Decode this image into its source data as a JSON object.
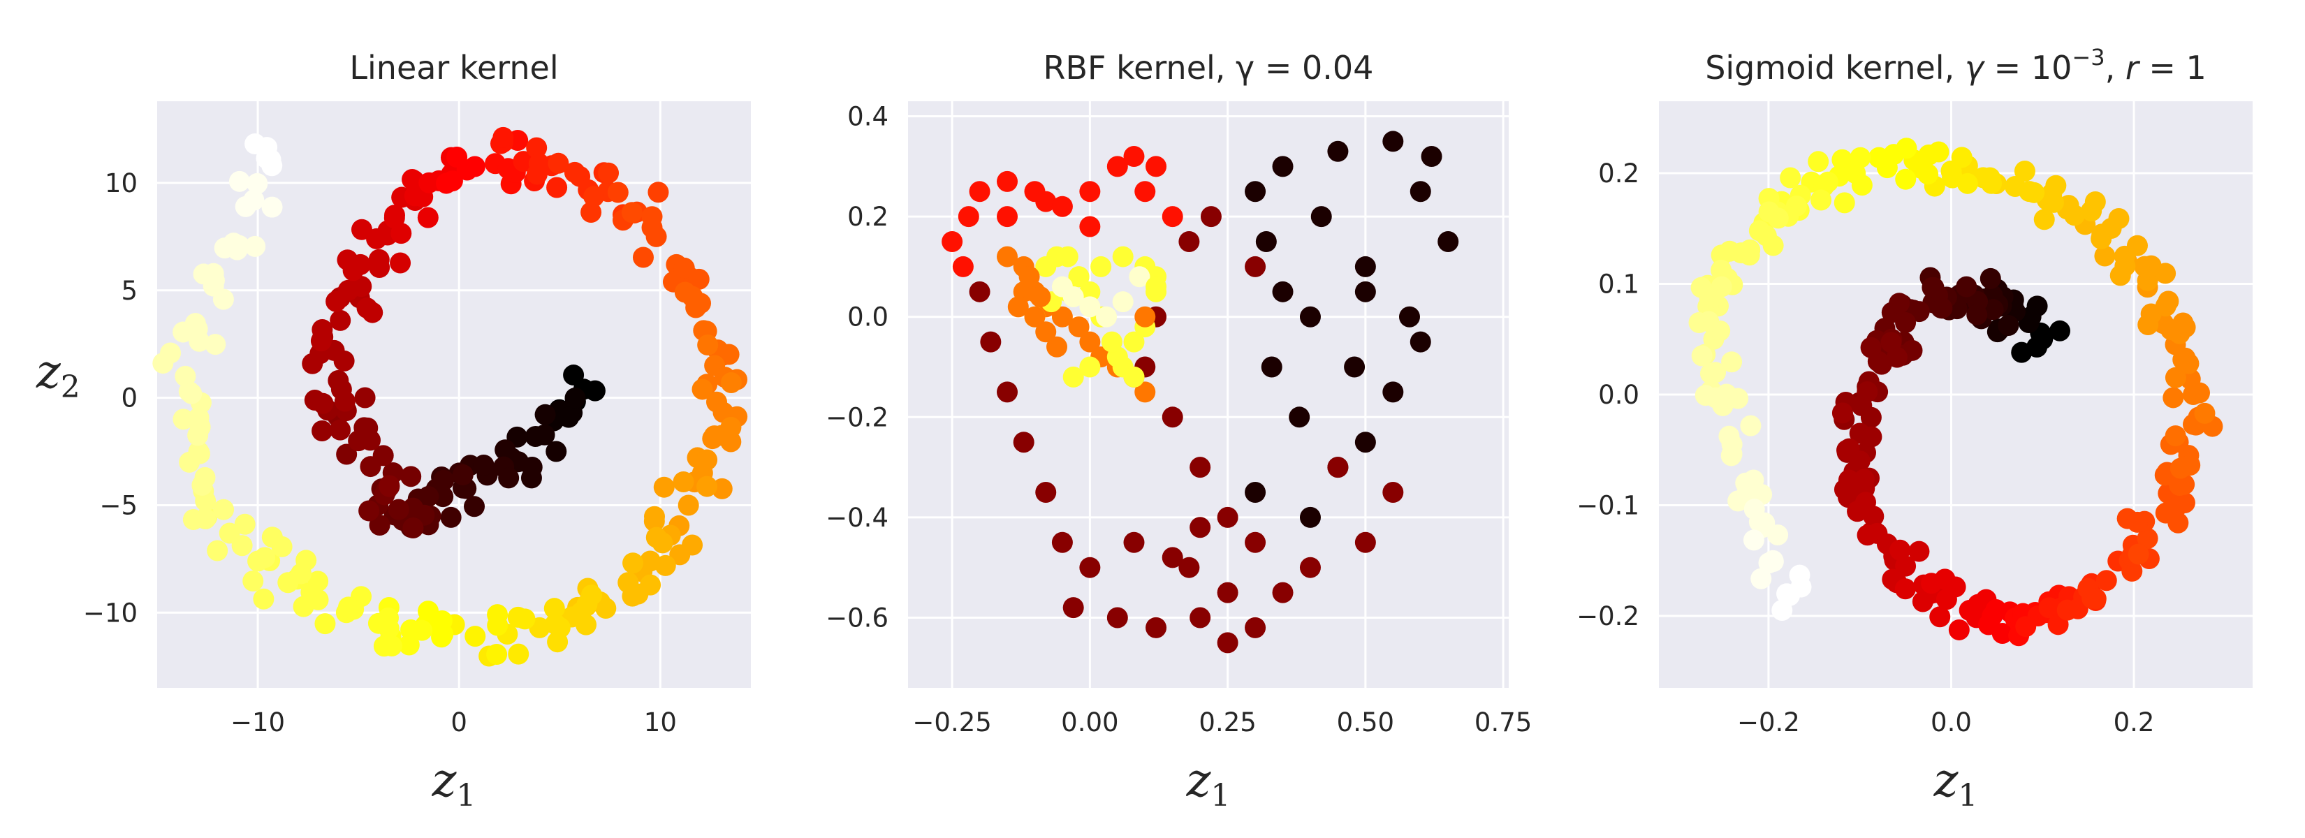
{
  "chart_data": [
    {
      "type": "scatter",
      "title": "Linear kernel",
      "xlabel": {
        "base": "z",
        "sub": "1"
      },
      "ylabel": {
        "base": "z",
        "sub": "2"
      },
      "xlim": [
        -15,
        14.5
      ],
      "ylim": [
        -13.5,
        13.8
      ],
      "xticks": [
        -10,
        0,
        10
      ],
      "xtick_labels": [
        "−10",
        "0",
        "10"
      ],
      "yticks": [
        -10,
        -5,
        0,
        5,
        10
      ],
      "ytick_labels": [
        "−10",
        "−5",
        "0",
        "5",
        "10"
      ],
      "grid": true,
      "colormap": "hot",
      "shape": "swiss-roll",
      "x": [
        6.2,
        5.0,
        3.8,
        2.6,
        1.4,
        0.2,
        -0.8,
        -1.8,
        -2.4,
        -2.8,
        -3.0,
        -3.6,
        -4.4,
        -5.0,
        -5.6,
        -6.0,
        -6.2,
        -5.9,
        -5.5,
        -4.9,
        -4.1,
        -3.2,
        -2.2,
        -1.0,
        0.4,
        1.8,
        3.2,
        4.6,
        6.0,
        7.4,
        8.7,
        9.8,
        10.8,
        11.6,
        12.3,
        12.7,
        12.8,
        12.6,
        12.1,
        11.4,
        10.5,
        9.5,
        8.4,
        7.0,
        5.6,
        4.0,
        2.4,
        0.8,
        -0.8,
        -2.4,
        -4.0,
        -5.6,
        -7.0,
        -8.5,
        -10.0,
        -11.4,
        -12.6,
        -13.4,
        -13.7,
        -13.6,
        -13.0,
        -12.2,
        -11.2,
        -10.2,
        -9.3
      ],
      "y": [
        0.4,
        -0.6,
        -1.8,
        -2.8,
        -3.6,
        -4.2,
        -4.6,
        -5.2,
        -5.6,
        -5.7,
        -5.2,
        -4.3,
        -3.2,
        -2.0,
        -0.6,
        0.8,
        2.2,
        3.6,
        5.0,
        6.2,
        7.4,
        8.5,
        9.4,
        10.1,
        10.6,
        10.9,
        11.0,
        10.8,
        10.3,
        9.6,
        8.6,
        7.5,
        6.2,
        4.7,
        3.1,
        1.5,
        -0.2,
        -1.9,
        -3.5,
        -5.0,
        -6.4,
        -7.6,
        -8.6,
        -9.5,
        -10.2,
        -10.7,
        -11.0,
        -11.1,
        -11.0,
        -10.8,
        -10.5,
        -10.0,
        -9.4,
        -8.6,
        -7.6,
        -6.3,
        -4.8,
        -3.0,
        -1.0,
        1.0,
        3.2,
        5.2,
        7.2,
        9.2,
        10.8
      ]
    },
    {
      "type": "scatter",
      "title": "RBF kernel, γ = 0.04",
      "xlabel": {
        "base": "z",
        "sub": "1"
      },
      "xlim": [
        -0.33,
        0.76
      ],
      "ylim": [
        -0.74,
        0.43
      ],
      "xticks": [
        -0.25,
        0,
        0.25,
        0.5,
        0.75
      ],
      "xtick_labels": [
        "−0.25",
        "0.00",
        "0.25",
        "0.50",
        "0.75"
      ],
      "yticks": [
        -0.6,
        -0.4,
        -0.2,
        0,
        0.2,
        0.4
      ],
      "ytick_labels": [
        "−0.6",
        "−0.4",
        "−0.2",
        "0.0",
        "0.2",
        "0.4"
      ],
      "grid": true,
      "colormap": "hot",
      "x": [
        0.55,
        0.45,
        0.35,
        0.3,
        0.6,
        0.65,
        0.5,
        0.4,
        0.33,
        0.38,
        0.45,
        0.5,
        0.55,
        0.6,
        0.42,
        0.32,
        0.35,
        0.5,
        0.58,
        0.48,
        0.3,
        0.4,
        0.62,
        0.3,
        0.22,
        0.18,
        0.12,
        0.1,
        0.15,
        0.2,
        0.25,
        0.3,
        0.08,
        0.0,
        -0.03,
        0.05,
        0.12,
        0.2,
        0.25,
        0.18,
        0.25,
        0.3,
        0.35,
        0.4,
        0.5,
        0.55,
        0.45,
        0.2,
        0.15,
        -0.05,
        -0.08,
        -0.12,
        -0.15,
        -0.18,
        -0.2,
        -0.15,
        -0.08,
        0.0,
        0.05,
        0.08,
        0.12,
        0.1,
        0.15,
        0.0,
        -0.05,
        -0.1,
        -0.15,
        -0.2,
        -0.22,
        -0.25,
        -0.23,
        -0.15,
        -0.12,
        -0.1,
        -0.08,
        -0.05,
        -0.02,
        0.0,
        0.02,
        0.05,
        0.08,
        0.1,
        -0.1,
        -0.07,
        -0.04,
        -0.02,
        0.02,
        0.06,
        0.1,
        0.12,
        0.0,
        -0.03,
        0.05,
        0.08,
        0.1,
        0.12,
        -0.12,
        -0.1,
        -0.13,
        -0.08,
        -0.06,
        -0.04,
        -0.02,
        0.0,
        0.02,
        0.04,
        0.06,
        0.08,
        -0.05,
        -0.03,
        0.0,
        0.03,
        0.06,
        0.09,
        -0.09,
        -0.11,
        -0.08,
        -0.06,
        0.1,
        0.12
      ],
      "y": [
        0.35,
        0.33,
        0.3,
        0.25,
        0.25,
        0.15,
        0.1,
        0.0,
        -0.1,
        -0.2,
        -0.3,
        -0.25,
        -0.15,
        -0.05,
        0.2,
        0.15,
        0.05,
        0.05,
        0.0,
        -0.1,
        -0.35,
        -0.4,
        0.32,
        0.1,
        0.2,
        0.15,
        0.0,
        -0.1,
        -0.2,
        -0.3,
        -0.4,
        -0.45,
        -0.45,
        -0.5,
        -0.58,
        -0.6,
        -0.62,
        -0.6,
        -0.55,
        -0.5,
        -0.65,
        -0.62,
        -0.55,
        -0.5,
        -0.45,
        -0.35,
        -0.3,
        -0.42,
        -0.48,
        -0.45,
        -0.35,
        -0.25,
        -0.15,
        -0.05,
        0.05,
        0.2,
        0.23,
        0.25,
        0.3,
        0.32,
        0.3,
        0.25,
        0.2,
        0.18,
        0.22,
        0.25,
        0.27,
        0.25,
        0.2,
        0.15,
        0.1,
        0.12,
        0.1,
        0.05,
        0.02,
        0.0,
        -0.02,
        -0.05,
        -0.08,
        -0.1,
        -0.12,
        -0.15,
        0.0,
        0.03,
        0.05,
        0.08,
        0.1,
        0.12,
        0.1,
        0.08,
        -0.1,
        -0.12,
        -0.08,
        -0.05,
        -0.02,
        0.05,
        0.05,
        0.0,
        0.02,
        0.1,
        0.12,
        0.12,
        0.08,
        0.05,
        0.0,
        -0.05,
        -0.1,
        -0.12,
        0.06,
        0.04,
        0.02,
        0.0,
        0.03,
        0.08,
        0.04,
        0.08,
        -0.03,
        -0.06,
        0.0,
        0.06
      ],
      "c": [
        1,
        1,
        1,
        1,
        1,
        1,
        1,
        1,
        1,
        1,
        1,
        1,
        1,
        1,
        1,
        1,
        1,
        1,
        1,
        1,
        1,
        1,
        1,
        2,
        2,
        2,
        2,
        2,
        2,
        2,
        2,
        2,
        2,
        2,
        2,
        2,
        2,
        2,
        2,
        2,
        2,
        2,
        2,
        2,
        2,
        2,
        2,
        2,
        2,
        2,
        2,
        2,
        2,
        2,
        2,
        3,
        3,
        3,
        3,
        3,
        3,
        3,
        3,
        3,
        3,
        3,
        3,
        3,
        3,
        3,
        3,
        4,
        4,
        4,
        4,
        4,
        4,
        4,
        4,
        4,
        4,
        4,
        5,
        5,
        5,
        5,
        5,
        5,
        5,
        5,
        5,
        5,
        5,
        5,
        5,
        5,
        4,
        4,
        4,
        5,
        5,
        5,
        5,
        5,
        5,
        5,
        5,
        5,
        6,
        6,
        6,
        6,
        6,
        6,
        4,
        4,
        4,
        4,
        4,
        5
      ]
    },
    {
      "type": "scatter",
      "title": "Sigmoid kernel, γ = 10⁻³, r = 1",
      "title_parts": {
        "text": "Sigmoid kernel,",
        "gamma": "γ",
        "eq1": " = 10",
        "exp": "−3",
        "r": "r",
        "eq2": " = 1"
      },
      "xlabel": {
        "base": "z",
        "sub": "1"
      },
      "xlim": [
        -0.32,
        0.33
      ],
      "ylim": [
        -0.265,
        0.265
      ],
      "xticks": [
        -0.2,
        0,
        0.2
      ],
      "xtick_labels": [
        "−0.2",
        "0.0",
        "0.2"
      ],
      "yticks": [
        -0.2,
        -0.1,
        0,
        0.1,
        0.2
      ],
      "ytick_labels": [
        "−0.2",
        "−0.1",
        "0.0",
        "0.1",
        "0.2"
      ],
      "grid": true,
      "colormap": "hot",
      "shape": "spiral",
      "x": [
        0.1,
        0.085,
        0.07,
        0.055,
        0.04,
        0.025,
        0.01,
        -0.005,
        -0.02,
        -0.035,
        -0.05,
        -0.065,
        -0.08,
        -0.09,
        -0.098,
        -0.1,
        -0.1,
        -0.095,
        -0.085,
        -0.07,
        -0.05,
        -0.03,
        -0.005,
        0.02,
        0.045,
        0.07,
        0.095,
        0.12,
        0.145,
        0.17,
        0.195,
        0.215,
        0.235,
        0.25,
        0.26,
        0.265,
        0.265,
        0.26,
        0.25,
        0.235,
        0.215,
        0.19,
        0.165,
        0.135,
        0.105,
        0.07,
        0.035,
        0.0,
        -0.035,
        -0.07,
        -0.105,
        -0.135,
        -0.165,
        -0.19,
        -0.21,
        -0.23,
        -0.245,
        -0.255,
        -0.26,
        -0.258,
        -0.25,
        -0.24,
        -0.225,
        -0.21,
        -0.195,
        -0.18
      ],
      "y": [
        0.05,
        0.065,
        0.075,
        0.08,
        0.085,
        0.09,
        0.09,
        0.088,
        0.083,
        0.075,
        0.065,
        0.05,
        0.03,
        0.01,
        -0.01,
        -0.035,
        -0.06,
        -0.085,
        -0.11,
        -0.135,
        -0.155,
        -0.172,
        -0.185,
        -0.195,
        -0.2,
        -0.202,
        -0.2,
        -0.193,
        -0.183,
        -0.168,
        -0.15,
        -0.13,
        -0.107,
        -0.082,
        -0.055,
        -0.027,
        0.0,
        0.028,
        0.055,
        0.08,
        0.103,
        0.125,
        0.145,
        0.162,
        0.176,
        0.188,
        0.196,
        0.202,
        0.205,
        0.205,
        0.2,
        0.192,
        0.18,
        0.165,
        0.148,
        0.128,
        0.105,
        0.08,
        0.05,
        0.02,
        -0.01,
        -0.045,
        -0.08,
        -0.115,
        -0.15,
        -0.18
      ]
    }
  ]
}
